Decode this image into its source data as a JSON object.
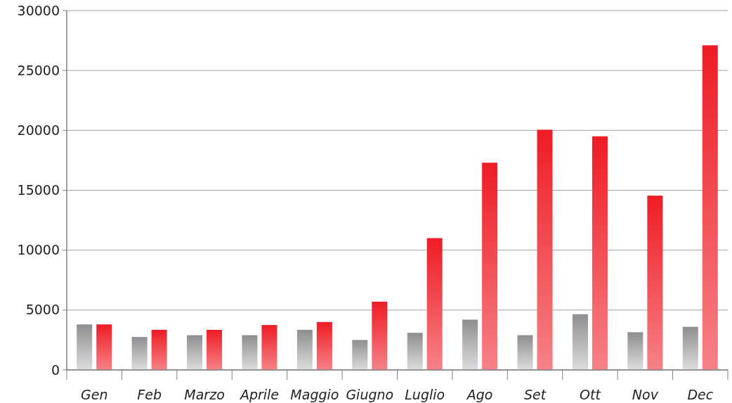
{
  "chart_data": {
    "type": "bar",
    "categories": [
      "Gen",
      "Feb",
      "Marzo",
      "Aprile",
      "Maggio",
      "Giugno",
      "Luglio",
      "Ago",
      "Set",
      "Ott",
      "Nov",
      "Dec"
    ],
    "series": [
      {
        "color": "#8e8e90",
        "values": [
          3800,
          2750,
          2900,
          2900,
          3350,
          2500,
          3100,
          4200,
          2900,
          4650,
          3150,
          3600
        ]
      },
      {
        "color": "#ee1c25",
        "values": [
          3800,
          3350,
          3350,
          3750,
          4000,
          5700,
          11000,
          17300,
          20050,
          19500,
          14550,
          27100
        ]
      }
    ],
    "ylim": [
      0,
      30000
    ],
    "yticks": [
      {
        "value": 0,
        "label": "0"
      },
      {
        "value": 5000,
        "label": "5000"
      },
      {
        "value": 10000,
        "label": "10000"
      },
      {
        "value": 15000,
        "label": "15000"
      },
      {
        "value": 20000,
        "label": "20000"
      },
      {
        "value": 25000,
        "label": "25000"
      },
      {
        "value": 30000,
        "label": "30000"
      }
    ],
    "grid": "y"
  }
}
